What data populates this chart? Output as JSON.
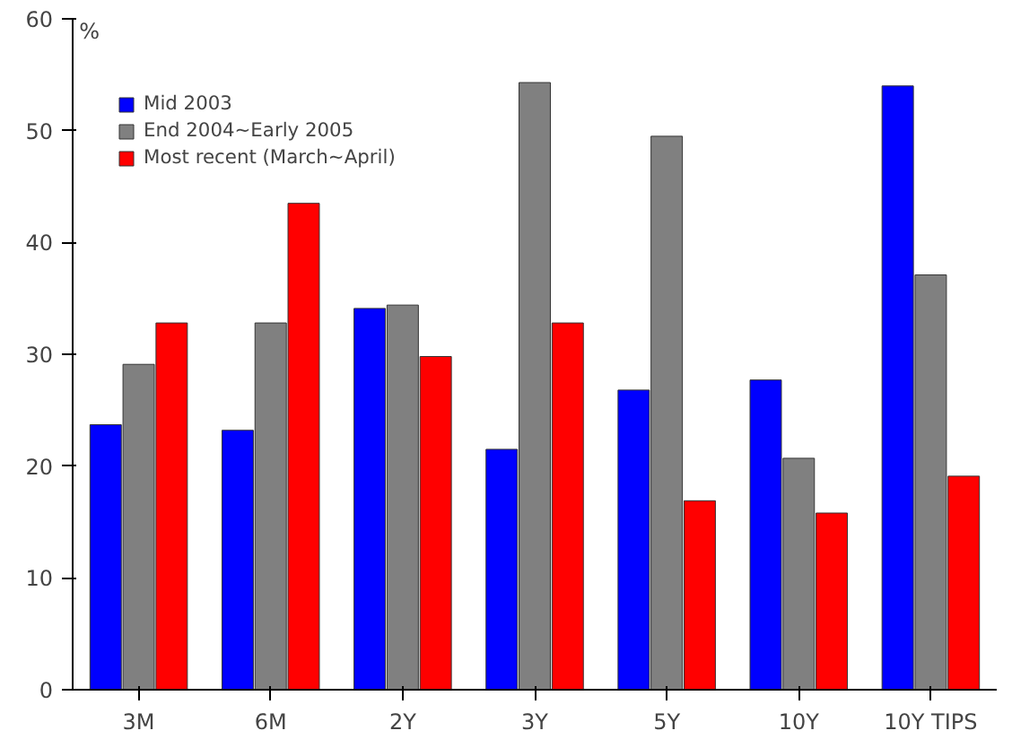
{
  "chart_data": {
    "type": "bar",
    "ylabel": "%",
    "categories": [
      "3M",
      "6M",
      "2Y",
      "3Y",
      "5Y",
      "10Y",
      "10Y TIPS"
    ],
    "series": [
      {
        "name": "Mid 2003",
        "color": "#0000ff",
        "values": [
          23.7,
          23.2,
          34.1,
          21.5,
          26.8,
          27.7,
          54.0
        ]
      },
      {
        "name": "End 2004~Early 2005",
        "color": "#808080",
        "values": [
          29.1,
          32.8,
          34.4,
          54.3,
          49.5,
          20.7,
          37.1
        ]
      },
      {
        "name": "Most recent (March~April)",
        "color": "#ff0000",
        "values": [
          32.8,
          43.5,
          29.8,
          32.8,
          16.9,
          15.8,
          19.1
        ]
      }
    ],
    "ylim": [
      0,
      60
    ],
    "yticks": [
      0,
      10,
      20,
      30,
      40,
      50,
      60
    ],
    "grid": false,
    "legend": "top left"
  }
}
